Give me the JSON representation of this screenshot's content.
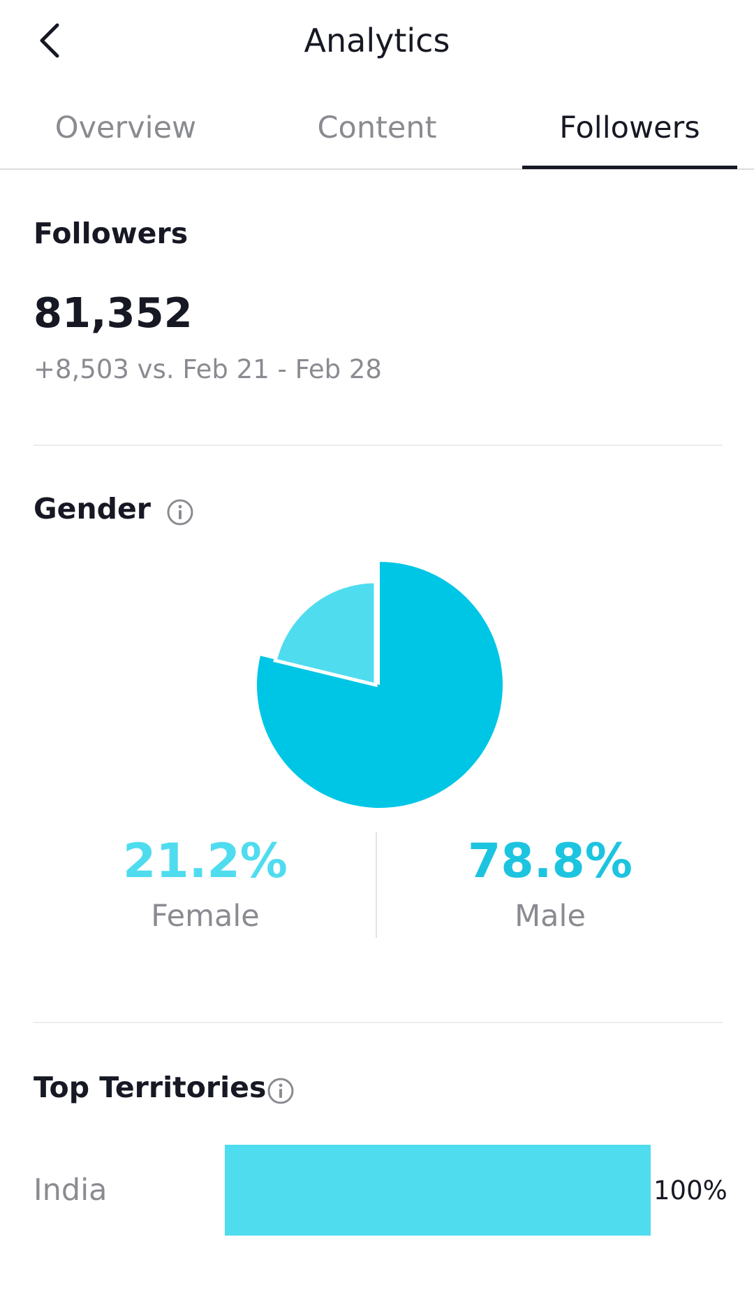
{
  "header": {
    "title": "Analytics",
    "back_icon": "chevron-left-icon"
  },
  "tabs": [
    {
      "label": "Overview",
      "active": false
    },
    {
      "label": "Content",
      "active": false
    },
    {
      "label": "Followers",
      "active": true
    }
  ],
  "followers": {
    "title": "Followers",
    "count": "81,352",
    "comparison": "+8,503 vs. Feb 21 - Feb 28"
  },
  "gender": {
    "title": "Gender",
    "info_icon": "info-icon",
    "female": {
      "value": "21.2%",
      "label": "Female",
      "color": "#4fdcef"
    },
    "male": {
      "value": "78.8%",
      "label": "Male",
      "color": "#00c6e6"
    }
  },
  "territories": {
    "title": "Top Territories",
    "info_icon": "info-icon",
    "items": [
      {
        "name": "India",
        "value": "100%",
        "fraction": 1.0,
        "color": "#4fdcef"
      }
    ]
  },
  "chart_data": {
    "type": "pie",
    "categories": [
      "Female",
      "Male"
    ],
    "values": [
      21.2,
      78.8
    ],
    "colors": [
      "#4fdcef",
      "#00c6e6"
    ],
    "title": "Gender"
  }
}
